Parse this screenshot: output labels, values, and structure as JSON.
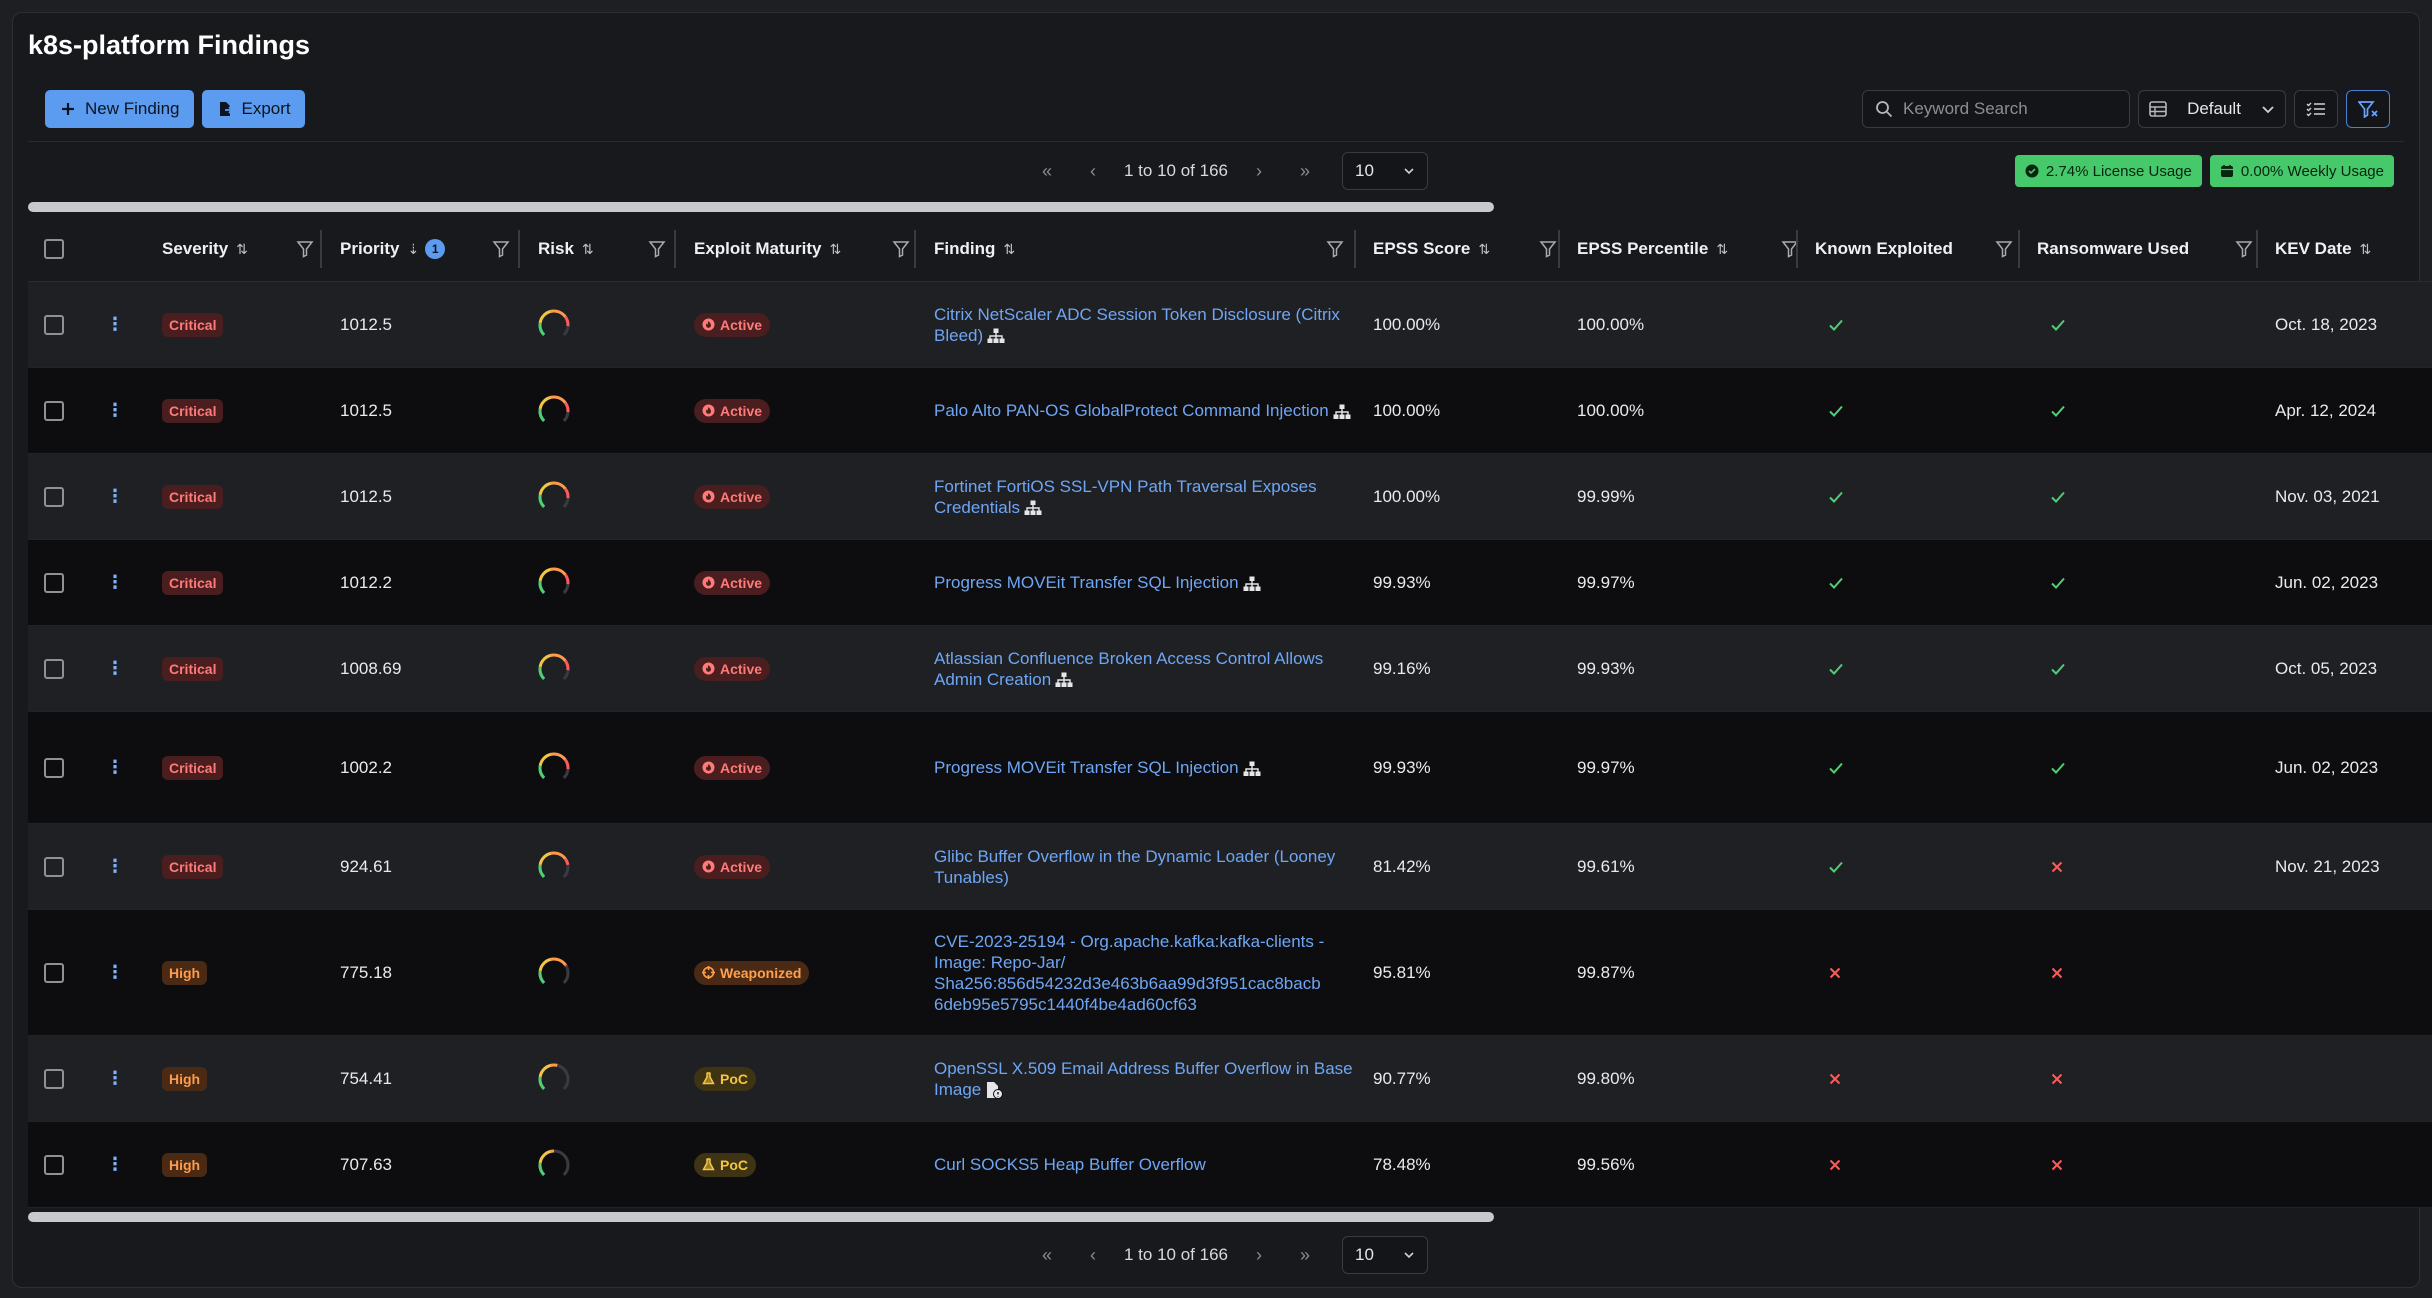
{
  "page": {
    "title": "k8s-platform Findings"
  },
  "toolbar": {
    "new_finding": "New Finding",
    "export": "Export"
  },
  "search": {
    "placeholder": "Keyword Search"
  },
  "view": {
    "selected": "Default"
  },
  "pagination": {
    "range_text": "1 to 10 of 166",
    "page_size": "10"
  },
  "usage": {
    "license": "2.74% License Usage",
    "weekly": "0.00% Weekly Usage"
  },
  "columns": {
    "severity": "Severity",
    "priority": "Priority",
    "priority_rank": "1",
    "risk": "Risk",
    "exploit_maturity": "Exploit Maturity",
    "finding": "Finding",
    "epss_score": "EPSS Score",
    "epss_percentile": "EPSS Percentile",
    "known_exploited": "Known Exploited",
    "ransomware_used": "Ransomware Used",
    "kev_date": "KEV Date"
  },
  "rows": [
    {
      "severity": "Critical",
      "priority": "1012.5",
      "risk": 0.85,
      "maturity": "Active",
      "finding": "Citrix NetScaler ADC Session Token Disclosure (Citrix Bleed)",
      "finding_icon": "tree",
      "epss_score": "100.00%",
      "epss_percentile": "100.00%",
      "known_exploited": true,
      "ransomware": true,
      "kev_date": "Oct. 18, 2023"
    },
    {
      "severity": "Critical",
      "priority": "1012.5",
      "risk": 0.85,
      "maturity": "Active",
      "finding": "Palo Alto PAN-OS GlobalProtect Command Injection",
      "finding_icon": "tree",
      "epss_score": "100.00%",
      "epss_percentile": "100.00%",
      "known_exploited": true,
      "ransomware": true,
      "kev_date": "Apr. 12, 2024"
    },
    {
      "severity": "Critical",
      "priority": "1012.5",
      "risk": 0.85,
      "maturity": "Active",
      "finding": "Fortinet FortiOS SSL-VPN Path Traversal Exposes Credentials",
      "finding_icon": "tree",
      "epss_score": "100.00%",
      "epss_percentile": "99.99%",
      "known_exploited": true,
      "ransomware": true,
      "kev_date": "Nov. 03, 2021"
    },
    {
      "severity": "Critical",
      "priority": "1012.2",
      "risk": 0.85,
      "maturity": "Active",
      "finding": "Progress MOVEit Transfer SQL Injection",
      "finding_icon": "tree",
      "epss_score": "99.93%",
      "epss_percentile": "99.97%",
      "known_exploited": true,
      "ransomware": true,
      "kev_date": "Jun. 02, 2023"
    },
    {
      "severity": "Critical",
      "priority": "1008.69",
      "risk": 0.85,
      "maturity": "Active",
      "finding": "Atlassian Confluence Broken Access Control Allows Admin Creation",
      "finding_icon": "tree",
      "epss_score": "99.16%",
      "epss_percentile": "99.93%",
      "known_exploited": true,
      "ransomware": true,
      "kev_date": "Oct. 05, 2023"
    },
    {
      "severity": "Critical",
      "priority": "1002.2",
      "risk": 0.85,
      "maturity": "Active",
      "finding": "Progress MOVEit Transfer SQL Injection",
      "finding_icon": "tree",
      "epss_score": "99.93%",
      "epss_percentile": "99.97%",
      "known_exploited": true,
      "ransomware": true,
      "kev_date": "Jun. 02, 2023"
    },
    {
      "severity": "Critical",
      "priority": "924.61",
      "risk": 0.8,
      "maturity": "Active",
      "finding": "Glibc Buffer Overflow in the Dynamic Loader (Looney Tunables)",
      "finding_icon": "",
      "epss_score": "81.42%",
      "epss_percentile": "99.61%",
      "known_exploited": true,
      "ransomware": false,
      "kev_date": "Nov. 21, 2023"
    },
    {
      "severity": "High",
      "priority": "775.18",
      "risk": 0.72,
      "maturity": "Weaponized",
      "finding": "CVE-2023-25194 - Org.apache.kafka:kafka-clients - Image: Repo-Jar/ Sha256:856d54232d3e463b6aa99d3f951cac8bacb 6deb95e5795c1440f4be4ad60cf63",
      "finding_icon": "",
      "epss_score": "95.81%",
      "epss_percentile": "99.87%",
      "known_exploited": false,
      "ransomware": false,
      "kev_date": ""
    },
    {
      "severity": "High",
      "priority": "754.41",
      "risk": 0.55,
      "maturity": "PoC",
      "finding": "OpenSSL X.509 Email Address Buffer Overflow in Base Image",
      "finding_icon": "file",
      "epss_score": "90.77%",
      "epss_percentile": "99.80%",
      "known_exploited": false,
      "ransomware": false,
      "kev_date": ""
    },
    {
      "severity": "High",
      "priority": "707.63",
      "risk": 0.5,
      "maturity": "PoC",
      "finding": "Curl SOCKS5 Heap Buffer Overflow",
      "finding_icon": "",
      "epss_score": "78.48%",
      "epss_percentile": "99.56%",
      "known_exploited": false,
      "ransomware": false,
      "kev_date": ""
    }
  ]
}
